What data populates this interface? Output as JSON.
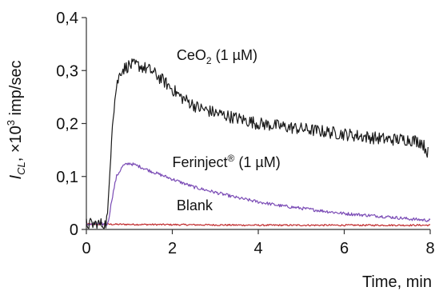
{
  "chart_data": {
    "type": "line",
    "xlabel": "Time, min",
    "ylabel": {
      "symbol": "I",
      "subscript": "CL",
      "prefix": ", ×10",
      "power": "3",
      "unit": " imp/sec"
    },
    "xlim": [
      0,
      8
    ],
    "ylim": [
      0,
      0.4
    ],
    "xticks": [
      0,
      2,
      4,
      6,
      8
    ],
    "xtick_labels": [
      "0",
      "2",
      "4",
      "6",
      "8"
    ],
    "yticks": [
      0,
      0.1,
      0.2,
      0.3,
      0.4
    ],
    "ytick_labels": [
      "0",
      "0,1",
      "0,2",
      "0,3",
      "0,4"
    ],
    "grid": false,
    "legend": "none",
    "series": [
      {
        "name": "CeO2 (1 µM)",
        "color": "#1a1a1a",
        "noise": 0.012,
        "x": [
          0,
          0.3,
          0.45,
          0.5,
          0.6,
          0.7,
          0.8,
          1.0,
          1.2,
          1.5,
          1.8,
          2.2,
          2.6,
          3.0,
          3.5,
          4.0,
          4.5,
          5.0,
          5.5,
          6.0,
          6.5,
          7.0,
          7.5,
          7.8,
          7.95
        ],
        "y": [
          0.01,
          0.01,
          0.01,
          0.03,
          0.2,
          0.27,
          0.3,
          0.31,
          0.31,
          0.3,
          0.28,
          0.25,
          0.23,
          0.22,
          0.21,
          0.2,
          0.195,
          0.19,
          0.185,
          0.18,
          0.175,
          0.17,
          0.17,
          0.165,
          0.145
        ]
      },
      {
        "name": "Ferinject® (1 µM)",
        "color": "#7a4bb5",
        "noise": 0.003,
        "x": [
          0,
          0.5,
          0.6,
          0.7,
          0.85,
          1.0,
          1.2,
          1.5,
          2.0,
          2.5,
          3.0,
          3.5,
          4.0,
          4.5,
          5.0,
          5.5,
          6.0,
          6.5,
          7.0,
          7.5,
          8.0
        ],
        "y": [
          0.01,
          0.01,
          0.06,
          0.1,
          0.12,
          0.125,
          0.12,
          0.11,
          0.095,
          0.08,
          0.07,
          0.06,
          0.052,
          0.045,
          0.04,
          0.035,
          0.03,
          0.027,
          0.024,
          0.02,
          0.017
        ]
      },
      {
        "name": "Blank",
        "color": "#c0282a",
        "noise": 0.0015,
        "x": [
          0,
          2,
          4,
          6,
          8
        ],
        "y": [
          0.01,
          0.009,
          0.008,
          0.008,
          0.008
        ]
      }
    ],
    "annotations": [
      {
        "base": "CeO",
        "sub": "2",
        "rest": " (1 µM)",
        "x": 2.1,
        "y": 0.32
      },
      {
        "base": "Ferinject",
        "sup": "®",
        "rest": " (1 µM)",
        "x": 2.0,
        "y": 0.118
      },
      {
        "base": "Blank",
        "x": 2.1,
        "y": 0.036
      }
    ]
  }
}
